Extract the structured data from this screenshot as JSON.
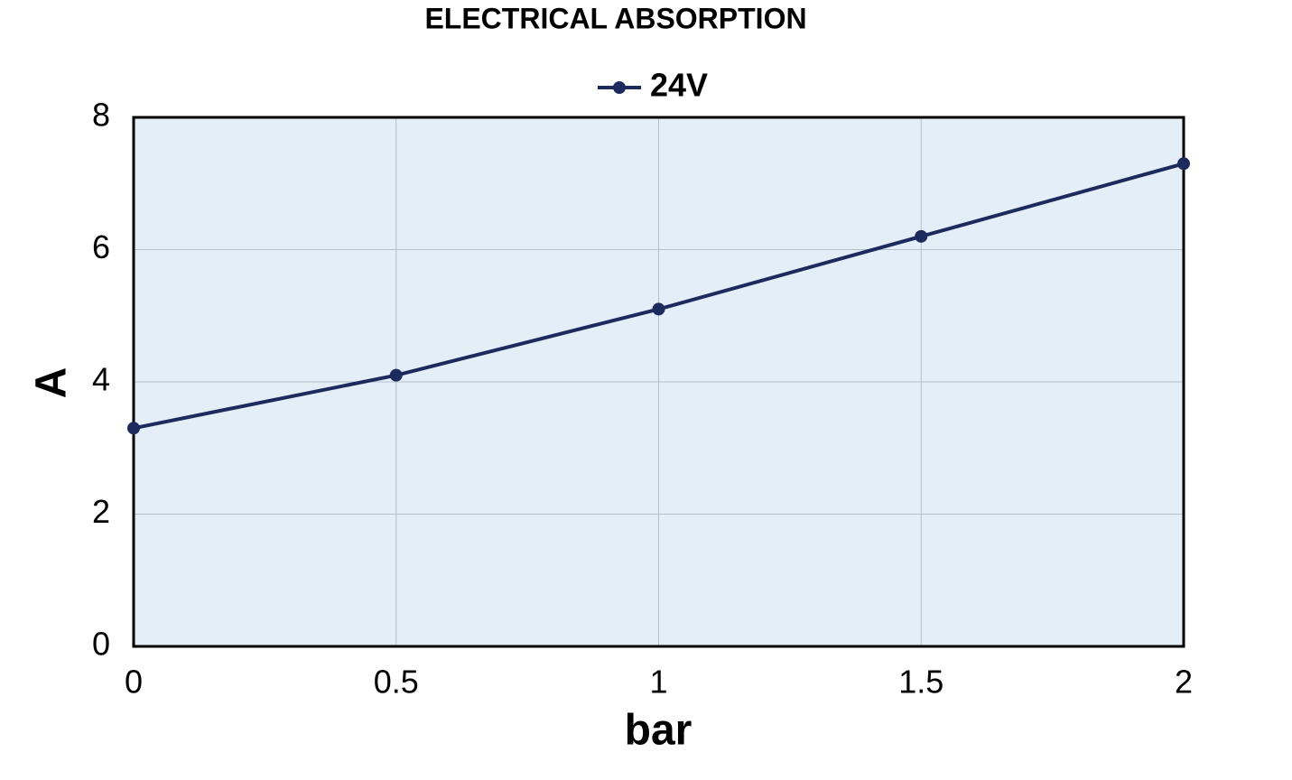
{
  "chart_data": {
    "type": "line",
    "title": "ELECTRICAL ABSORPTION",
    "x_label": "bar",
    "y_label": "A",
    "x": [
      0,
      0.5,
      1,
      1.5,
      2
    ],
    "series": [
      {
        "name": "24V",
        "color": "#1c2a5e",
        "values": [
          3.3,
          4.1,
          5.1,
          6.2,
          7.3
        ]
      }
    ],
    "xlim": [
      0,
      2
    ],
    "xticks": [
      0,
      0.5,
      1,
      1.5,
      2
    ],
    "ylim": [
      0,
      8
    ],
    "yticks": [
      0,
      2,
      4,
      6,
      8
    ],
    "grid": true,
    "legend": "top"
  }
}
